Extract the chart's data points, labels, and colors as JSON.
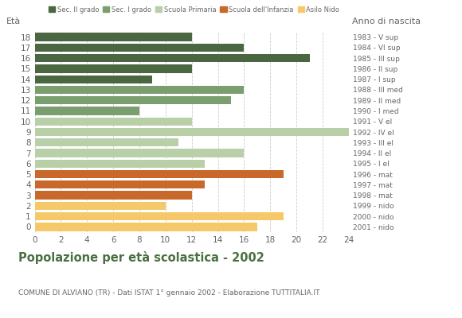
{
  "ages": [
    18,
    17,
    16,
    15,
    14,
    13,
    12,
    11,
    10,
    9,
    8,
    7,
    6,
    5,
    4,
    3,
    2,
    1,
    0
  ],
  "values": [
    12,
    16,
    21,
    12,
    9,
    16,
    15,
    8,
    12,
    24,
    11,
    16,
    13,
    19,
    13,
    12,
    10,
    19,
    17
  ],
  "categories": [
    "Sec. II grado",
    "Sec. II grado",
    "Sec. II grado",
    "Sec. II grado",
    "Sec. II grado",
    "Sec. I grado",
    "Sec. I grado",
    "Sec. I grado",
    "Scuola Primaria",
    "Scuola Primaria",
    "Scuola Primaria",
    "Scuola Primaria",
    "Scuola Primaria",
    "Scuola dell'Infanzia",
    "Scuola dell'Infanzia",
    "Scuola dell'Infanzia",
    "Asilo Nido",
    "Asilo Nido",
    "Asilo Nido"
  ],
  "right_labels": [
    "1983 - V sup",
    "1984 - VI sup",
    "1985 - III sup",
    "1986 - II sup",
    "1987 - I sup",
    "1988 - III med",
    "1989 - II med",
    "1990 - I med",
    "1991 - V el",
    "1992 - IV el",
    "1993 - III el",
    "1994 - II el",
    "1995 - I el",
    "1996 - mat",
    "1997 - mat",
    "1998 - mat",
    "1999 - nido",
    "2000 - nido",
    "2001 - nido"
  ],
  "colors": {
    "Sec. II grado": "#4a6741",
    "Sec. I grado": "#7a9e6e",
    "Scuola Primaria": "#b8cfa8",
    "Scuola dell'Infanzia": "#c8682a",
    "Asilo Nido": "#f5c96a"
  },
  "legend_order": [
    "Sec. II grado",
    "Sec. I grado",
    "Scuola Primaria",
    "Scuola dell'Infanzia",
    "Asilo Nido"
  ],
  "title": "Popolazione per età scolastica - 2002",
  "subtitle": "COMUNE DI ALVIANO (TR) - Dati ISTAT 1° gennaio 2002 - Elaborazione TUTTITALIA.IT",
  "xlabel_left": "Età",
  "xlabel_right": "Anno di nascita",
  "xlim": [
    0,
    24
  ],
  "xticks": [
    0,
    2,
    4,
    6,
    8,
    10,
    12,
    14,
    16,
    18,
    20,
    22,
    24
  ],
  "grid_color": "#cccccc",
  "background_color": "#ffffff",
  "title_color": "#4a7040",
  "label_color": "#666666"
}
